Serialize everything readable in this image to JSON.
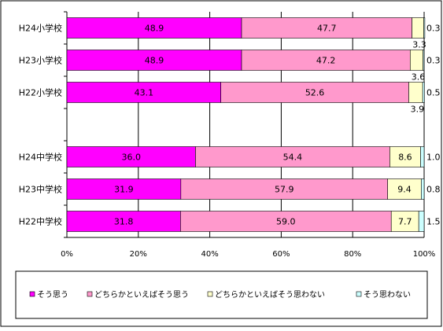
{
  "chart_data": {
    "type": "bar",
    "orientation": "horizontal",
    "stacked": true,
    "percent": true,
    "title": "",
    "xlabel": "",
    "ylabel": "",
    "xlim": [
      0,
      100
    ],
    "x_ticks": [
      "0%",
      "20%",
      "40%",
      "60%",
      "80%",
      "100%"
    ],
    "x_tick_values": [
      0,
      20,
      40,
      60,
      80,
      100
    ],
    "grid": true,
    "legend": "bottom",
    "categories": [
      "H24小学校",
      "H23小学校",
      "H22小学校",
      "",
      "H24中学校",
      "H23中学校",
      "H22中学校"
    ],
    "series": [
      {
        "name": "そう思う",
        "color": "#ff00ff",
        "values": [
          48.9,
          48.9,
          43.1,
          null,
          36.0,
          31.9,
          31.8
        ],
        "labels": [
          "48.9",
          "48.9",
          "43.1",
          "",
          "36.0",
          "31.9",
          "31.8"
        ]
      },
      {
        "name": "どちらかといえばそう思う",
        "color": "#ff99cc",
        "values": [
          47.7,
          47.2,
          52.6,
          null,
          54.4,
          57.9,
          59.0
        ],
        "labels": [
          "47.7",
          "47.2",
          "52.6",
          "",
          "54.4",
          "57.9",
          "59.0"
        ]
      },
      {
        "name": "どちらかといえばそう思わない",
        "color": "#ffffcc",
        "values": [
          3.3,
          3.6,
          3.9,
          null,
          8.6,
          9.4,
          7.7
        ],
        "labels": [
          "3.3",
          "3.6",
          "3.9",
          "",
          "8.6",
          "9.4",
          "7.7"
        ]
      },
      {
        "name": "そう思わない",
        "color": "#ccffff",
        "values": [
          0.3,
          0.3,
          0.5,
          null,
          1.0,
          0.8,
          1.5
        ],
        "labels": [
          "0.3",
          "0.3",
          "0.5",
          "",
          "1.0",
          "0.8",
          "1.5"
        ]
      }
    ]
  }
}
